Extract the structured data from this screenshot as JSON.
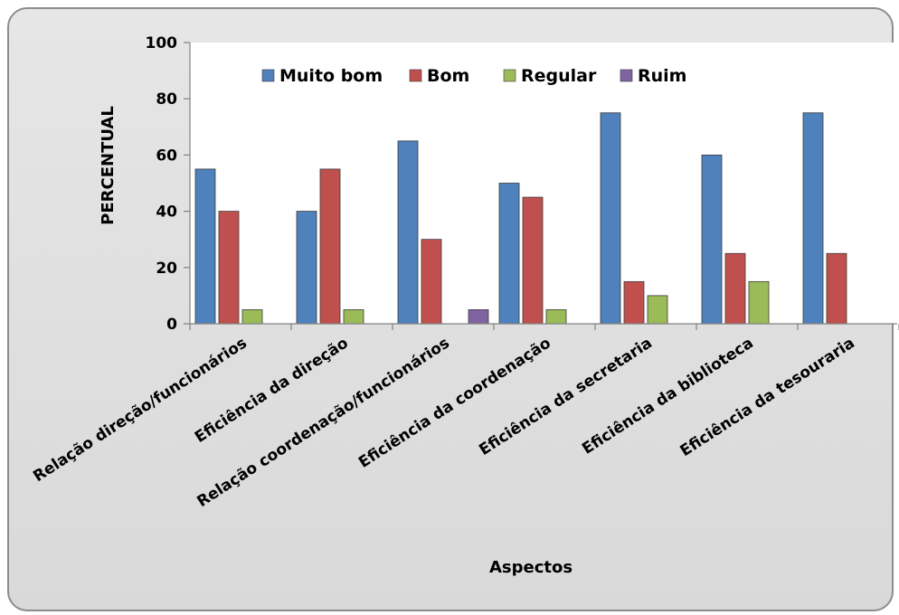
{
  "chart_data": {
    "type": "bar",
    "title": "",
    "xlabel": "Aspectos",
    "ylabel": "PERCENTUAL",
    "ylim": [
      0,
      100
    ],
    "yticks": [
      0,
      20,
      40,
      60,
      80,
      100
    ],
    "grid": false,
    "legend_position": "top-right",
    "categories": [
      "Relação direção/funcionários",
      "Eficiência da direção",
      "Relação coordenação/funcionários",
      "Eficiência da coordenação",
      "Eficiência da secretaria",
      "Eficiência da biblioteca",
      "Eficiência da tesouraria"
    ],
    "series": [
      {
        "name": "Muito bom",
        "color": "#4f81bd",
        "values": [
          55,
          40,
          65,
          50,
          75,
          60,
          75
        ]
      },
      {
        "name": "Bom",
        "color": "#c0504d",
        "values": [
          40,
          55,
          30,
          45,
          15,
          25,
          25
        ]
      },
      {
        "name": "Regular",
        "color": "#9bbb59",
        "values": [
          5,
          5,
          0,
          5,
          10,
          15,
          0
        ]
      },
      {
        "name": "Ruim",
        "color": "#8064a2",
        "values": [
          0,
          0,
          5,
          0,
          0,
          0,
          0
        ]
      }
    ]
  }
}
